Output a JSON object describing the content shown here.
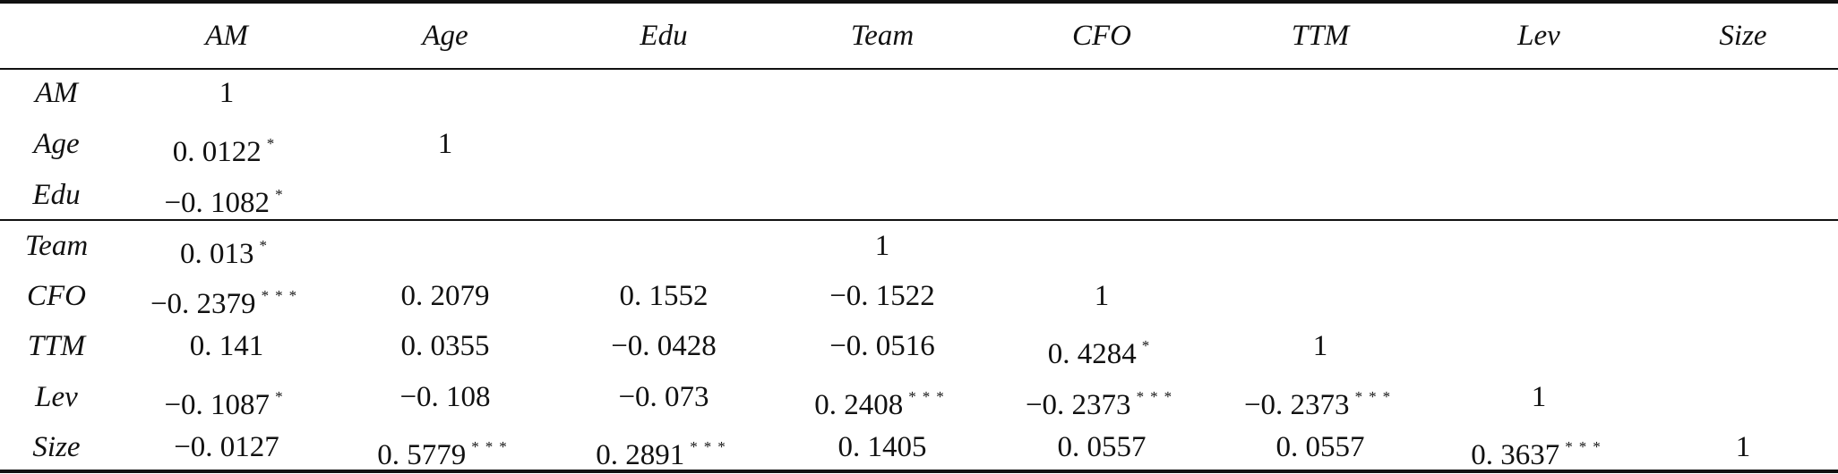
{
  "columns": [
    "AM",
    "Age",
    "Edu",
    "Team",
    "CFO",
    "TTM",
    "Lev",
    "Size"
  ],
  "rows": [
    {
      "label": "AM",
      "cells": [
        [
          "1",
          ""
        ],
        [
          "",
          ""
        ],
        [
          "",
          ""
        ],
        [
          "",
          ""
        ],
        [
          "",
          ""
        ],
        [
          "",
          ""
        ],
        [
          "",
          ""
        ],
        [
          "",
          ""
        ]
      ]
    },
    {
      "label": "Age",
      "cells": [
        [
          "0. 0122",
          "*"
        ],
        [
          "1",
          ""
        ],
        [
          "",
          ""
        ],
        [
          "",
          ""
        ],
        [
          "",
          ""
        ],
        [
          "",
          ""
        ],
        [
          "",
          ""
        ],
        [
          "",
          ""
        ]
      ]
    },
    {
      "label": "Edu",
      "cells": [
        [
          "−0. 1082",
          "*"
        ],
        [
          "",
          ""
        ],
        [
          "",
          ""
        ],
        [
          "",
          ""
        ],
        [
          "",
          ""
        ],
        [
          "",
          ""
        ],
        [
          "",
          ""
        ],
        [
          "",
          ""
        ]
      ]
    },
    {
      "label": "Team",
      "cells": [
        [
          "0. 013",
          "*"
        ],
        [
          "",
          ""
        ],
        [
          "",
          ""
        ],
        [
          "1",
          ""
        ],
        [
          "",
          ""
        ],
        [
          "",
          ""
        ],
        [
          "",
          ""
        ],
        [
          "",
          ""
        ]
      ]
    },
    {
      "label": "CFO",
      "cells": [
        [
          "−0. 2379",
          "***"
        ],
        [
          "0. 2079",
          ""
        ],
        [
          "0. 1552",
          ""
        ],
        [
          "−0. 1522",
          ""
        ],
        [
          "1",
          ""
        ],
        [
          "",
          ""
        ],
        [
          "",
          ""
        ],
        [
          "",
          ""
        ]
      ]
    },
    {
      "label": "TTM",
      "cells": [
        [
          "0. 141",
          ""
        ],
        [
          "0. 0355",
          ""
        ],
        [
          "−0. 0428",
          ""
        ],
        [
          "−0. 0516",
          ""
        ],
        [
          "0. 4284",
          "*"
        ],
        [
          "1",
          ""
        ],
        [
          "",
          ""
        ],
        [
          "",
          ""
        ]
      ]
    },
    {
      "label": "Lev",
      "cells": [
        [
          "−0. 1087",
          "*"
        ],
        [
          "−0. 108",
          ""
        ],
        [
          "−0. 073",
          ""
        ],
        [
          "0. 2408",
          "***"
        ],
        [
          "−0. 2373",
          "***"
        ],
        [
          "−0. 2373",
          "***"
        ],
        [
          "1",
          ""
        ],
        [
          "",
          ""
        ]
      ]
    },
    {
      "label": "Size",
      "cells": [
        [
          "−0. 0127",
          ""
        ],
        [
          "0. 5779",
          "***"
        ],
        [
          "0. 2891",
          "***"
        ],
        [
          "0. 1405",
          ""
        ],
        [
          "0. 0557",
          ""
        ],
        [
          "0. 0557",
          ""
        ],
        [
          "0. 3637",
          "***"
        ],
        [
          "1",
          ""
        ]
      ]
    }
  ]
}
